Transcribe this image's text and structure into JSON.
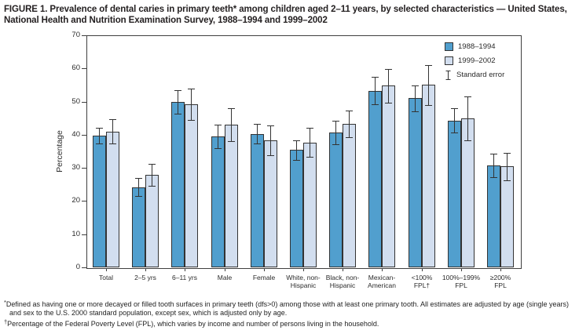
{
  "figure": {
    "title": "FIGURE 1. Prevalence of dental caries in primary teeth* among children aged 2–11 years, by selected characteristics — United States, National Health and Nutrition Examination Survey, 1988–1994 and 1999–2002",
    "footnotes": [
      {
        "marker": "*",
        "text": "Defined as having one or more decayed or filled tooth surfaces in primary teeth (dfs>0) among those with at least one primary tooth. All estimates are adjusted by age (single years) and sex to the U.S. 2000 standard population, except sex, which is adjusted only by age."
      },
      {
        "marker": "†",
        "text": "Percentage of the Federal Poverty Level (FPL), which varies by income and number of persons living in the household."
      }
    ]
  },
  "chart_data": {
    "type": "bar",
    "title": "",
    "xlabel": "",
    "ylabel": "Percentage",
    "ylim": [
      0,
      70
    ],
    "yticks": [
      0,
      10,
      20,
      30,
      40,
      50,
      60,
      70
    ],
    "grid": false,
    "categories": [
      "Total",
      "2–5 yrs",
      "6–11 yrs",
      "Male",
      "Female",
      "White, non-\nHispanic",
      "Black, non-\nHispanic",
      "Mexican-\nAmerican",
      "<100%\nFPL†",
      "100%–199%\nFPL",
      "≥200%\nFPL"
    ],
    "series": [
      {
        "name": "1988–1994",
        "color": "#519fce",
        "values": [
          39.7,
          24.2,
          49.9,
          39.5,
          40.3,
          35.4,
          40.7,
          53.3,
          51.0,
          44.3,
          30.7
        ],
        "standard_errors": [
          2.3,
          2.7,
          3.6,
          3.5,
          2.9,
          3.0,
          3.5,
          4.1,
          3.9,
          3.7,
          3.6
        ]
      },
      {
        "name": "1999–2002",
        "color": "#d2deef",
        "values": [
          41.0,
          27.9,
          49.2,
          43.1,
          38.3,
          37.7,
          43.2,
          54.8,
          55.0,
          45.0,
          30.4
        ],
        "standard_errors": [
          3.7,
          3.3,
          4.7,
          5.0,
          4.4,
          4.3,
          4.0,
          5.1,
          6.0,
          6.6,
          4.1
        ]
      }
    ],
    "legend": {
      "position": "top-right-inside",
      "error_label": "Standard error"
    }
  },
  "colors": {
    "axis": "#3f3f3f",
    "bar_outline": "#333333",
    "text": "#231f20",
    "series_1988_1994": "#519fce",
    "series_1999_2002": "#d2deef"
  }
}
